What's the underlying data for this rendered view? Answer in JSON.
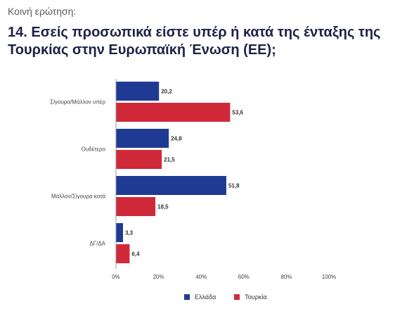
{
  "header": {
    "subtitle": "Κοινή ερώτηση:",
    "title": "14. Εσείς προσωπικά είστε υπέρ ή κατά της ένταξης της Τουρκίας στην Ευρωπαϊκή Ένωση (ΕΕ);"
  },
  "colors": {
    "greece": "#1f3a93",
    "turkey": "#d0293a",
    "axis": "#9a9a9a",
    "text": "#333333"
  },
  "chart_data": {
    "type": "bar",
    "orientation": "horizontal",
    "categories": [
      "Σίγουρα/Μάλλον υπέρ",
      "Ουδέτερο",
      "Μάλλον/Σίγουρα κατά",
      "ΔΓ/ΔΑ"
    ],
    "series": [
      {
        "name": "Ελλάδα",
        "values": [
          20.2,
          24.8,
          51.8,
          3.3
        ],
        "labels": [
          "20,2",
          "24,8",
          "51,8",
          "3,3"
        ]
      },
      {
        "name": "Τουρκία",
        "values": [
          53.6,
          21.5,
          18.5,
          6.4
        ],
        "labels": [
          "53,6",
          "21,5",
          "18,5",
          "6,4"
        ]
      }
    ],
    "xlim": [
      0,
      100
    ],
    "x_ticks": [
      "0%",
      "20%",
      "40%",
      "60%",
      "80%",
      "100%"
    ],
    "grid": false,
    "legend_position": "bottom"
  }
}
